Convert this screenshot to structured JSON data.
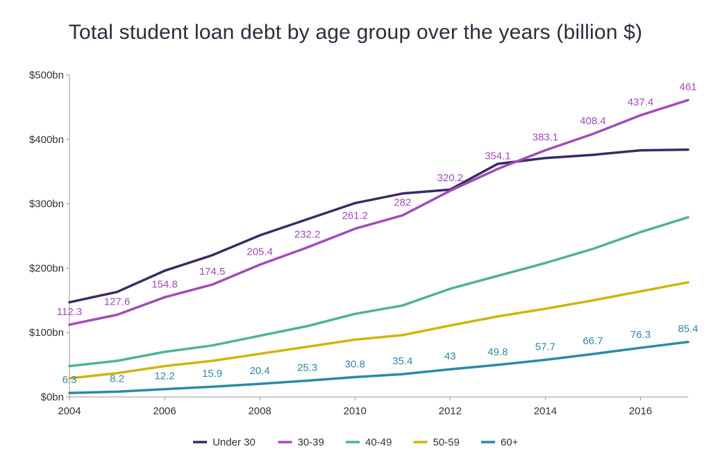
{
  "chart_data": {
    "type": "line",
    "title": "Total student loan debt by age group over the years (billion $)",
    "xlabel": "",
    "ylabel": "",
    "x": [
      2004,
      2005,
      2006,
      2007,
      2008,
      2009,
      2010,
      2011,
      2012,
      2013,
      2014,
      2015,
      2016,
      2017
    ],
    "xlim": [
      2004,
      2017
    ],
    "ylim": [
      0,
      500
    ],
    "x_ticks": [
      2004,
      2006,
      2008,
      2010,
      2012,
      2014,
      2016
    ],
    "y_ticks": [
      {
        "value": 0,
        "label": "$0bn"
      },
      {
        "value": 100,
        "label": "$100bn"
      },
      {
        "value": 200,
        "label": "$200bn"
      },
      {
        "value": 300,
        "label": "$300bn"
      },
      {
        "value": 400,
        "label": "$400bn"
      },
      {
        "value": 500,
        "label": "$500bn"
      }
    ],
    "grid": false,
    "legend_position": "bottom",
    "series": [
      {
        "name": "Under 30",
        "color": "#3b2a63",
        "values": [
          147,
          163,
          196,
          220,
          251,
          276,
          301,
          316,
          322,
          362,
          371,
          376,
          383,
          384
        ],
        "labels": null
      },
      {
        "name": "30-39",
        "color": "#a24bb8",
        "values": [
          112.3,
          127.6,
          154.8,
          174.5,
          205.4,
          232.2,
          261.2,
          282,
          320.2,
          354.1,
          383.1,
          408.4,
          437.4,
          461
        ],
        "labels": [
          "112.3",
          "127.6",
          "154.8",
          "174.5",
          "205.4",
          "232.2",
          "261.2",
          "282",
          "320.2",
          "354.1",
          "383.1",
          "408.4",
          "437.4",
          "461"
        ]
      },
      {
        "name": "40-49",
        "color": "#4db396",
        "values": [
          48,
          56,
          70,
          80,
          95,
          110,
          129,
          142,
          168,
          188,
          208,
          230,
          256,
          279
        ],
        "labels": null
      },
      {
        "name": "50-59",
        "color": "#cdb60b",
        "values": [
          29,
          37,
          48,
          56,
          67,
          78,
          89,
          96,
          111,
          125,
          137,
          150,
          164,
          178
        ],
        "labels": null
      },
      {
        "name": "60+",
        "color": "#2a8aa6",
        "values": [
          6.3,
          8.2,
          12.2,
          15.9,
          20.4,
          25.3,
          30.8,
          35.4,
          43,
          49.8,
          57.7,
          66.7,
          76.3,
          85.4
        ],
        "labels": [
          "6.3",
          "8.2",
          "12.2",
          "15.9",
          "20.4",
          "25.3",
          "30.8",
          "35.4",
          "43",
          "49.8",
          "57.7",
          "66.7",
          "76.3",
          "85.4"
        ]
      }
    ]
  }
}
